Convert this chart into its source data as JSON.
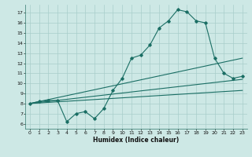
{
  "title": "",
  "xlabel": "Humidex (Indice chaleur)",
  "bg_color": "#cde8e5",
  "grid_color": "#a8ceca",
  "line_color": "#1a6e64",
  "x_ticks": [
    0,
    1,
    2,
    3,
    4,
    5,
    6,
    7,
    8,
    9,
    10,
    11,
    12,
    13,
    14,
    15,
    16,
    17,
    18,
    19,
    20,
    21,
    22,
    23
  ],
  "y_ticks": [
    6,
    7,
    8,
    9,
    10,
    11,
    12,
    13,
    14,
    15,
    16,
    17
  ],
  "xlim": [
    -0.5,
    23.5
  ],
  "ylim": [
    5.5,
    17.8
  ],
  "curve1_x": [
    0,
    1,
    2,
    3,
    4,
    5,
    6,
    7,
    8,
    9,
    10,
    11,
    12,
    13,
    14,
    15,
    16,
    17,
    18,
    19,
    20,
    21,
    22,
    23
  ],
  "curve1_y": [
    8.0,
    8.2,
    8.3,
    8.3,
    6.2,
    7.0,
    7.2,
    6.5,
    7.5,
    9.3,
    10.5,
    12.5,
    12.8,
    13.8,
    15.5,
    16.2,
    17.3,
    17.1,
    16.2,
    16.0,
    12.5,
    11.0,
    10.5,
    10.7
  ],
  "curve2_x": [
    0,
    23
  ],
  "curve2_y": [
    8.0,
    10.4
  ],
  "curve3_x": [
    0,
    23
  ],
  "curve3_y": [
    8.0,
    12.5
  ],
  "curve4_x": [
    0,
    23
  ],
  "curve4_y": [
    8.0,
    9.3
  ]
}
